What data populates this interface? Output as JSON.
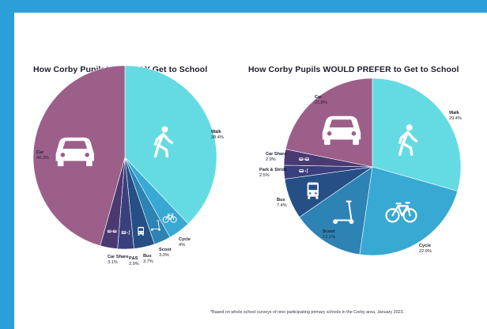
{
  "colors": {
    "background": "#2a9fd8",
    "car": "#9b5f8a",
    "walk": "#64dbe2",
    "cycle": "#37a9d2",
    "scoot": "#2d83b4",
    "bus": "#254f85",
    "park_stride": "#3a3f7e",
    "car_share": "#4a3a72",
    "icon": "#ffffff"
  },
  "footnote": "*Based on whole school surveys of nine participating primary schools in the Corby area, January 2023.",
  "chart_data": [
    {
      "type": "pie",
      "title": "How Corby Pupils* USUALLY Get to School",
      "slices": [
        {
          "name": "Walk",
          "value": 38.4,
          "label": "38.4%",
          "color": "#64dbe2",
          "icon": "walking-person-icon"
        },
        {
          "name": "Cycle",
          "value": 4,
          "label": "4%",
          "color": "#37a9d2",
          "icon": "bicycle-icon"
        },
        {
          "name": "Scoot",
          "value": 3.0,
          "label": "3.0%",
          "color": "#2d83b4",
          "icon": "scooter-icon"
        },
        {
          "name": "Bus",
          "value": 3.7,
          "label": "3.7%",
          "color": "#254f85",
          "icon": "bus-icon"
        },
        {
          "name": "P&S",
          "value": 2.9,
          "label": "2.9%",
          "color": "#3a3f7e",
          "icon": "park-and-stride-icon"
        },
        {
          "name": "Car Share",
          "value": 3.1,
          "label": "3.1%",
          "color": "#4a3a72",
          "icon": "car-share-icon"
        },
        {
          "name": "Car",
          "value": 46.3,
          "label": "46.3%",
          "color": "#9b5f8a",
          "icon": "car-icon"
        }
      ]
    },
    {
      "type": "pie",
      "title": "How Corby Pupils WOULD PREFER to Get to School",
      "slices": [
        {
          "name": "Walk",
          "value": 29.4,
          "label": "29.4%",
          "color": "#64dbe2",
          "icon": "walking-person-icon"
        },
        {
          "name": "Cycle",
          "value": 22.9,
          "label": "22.9%",
          "color": "#37a9d2",
          "icon": "bicycle-icon"
        },
        {
          "name": "Scoot",
          "value": 13.1,
          "label": "13.1%",
          "color": "#2d83b4",
          "icon": "scooter-icon"
        },
        {
          "name": "Bus",
          "value": 7.4,
          "label": "7.4%",
          "color": "#254f85",
          "icon": "bus-icon"
        },
        {
          "name": "Park & Stride",
          "value": 2.5,
          "label": "2.5%",
          "color": "#3a3f7e",
          "icon": "park-and-stride-icon"
        },
        {
          "name": "Car Share",
          "value": 2.9,
          "label": "2.9%",
          "color": "#4a3a72",
          "icon": "car-share-icon"
        },
        {
          "name": "Car",
          "value": 21.8,
          "label": "21.8%",
          "color": "#9b5f8a",
          "icon": "car-icon"
        }
      ]
    }
  ]
}
